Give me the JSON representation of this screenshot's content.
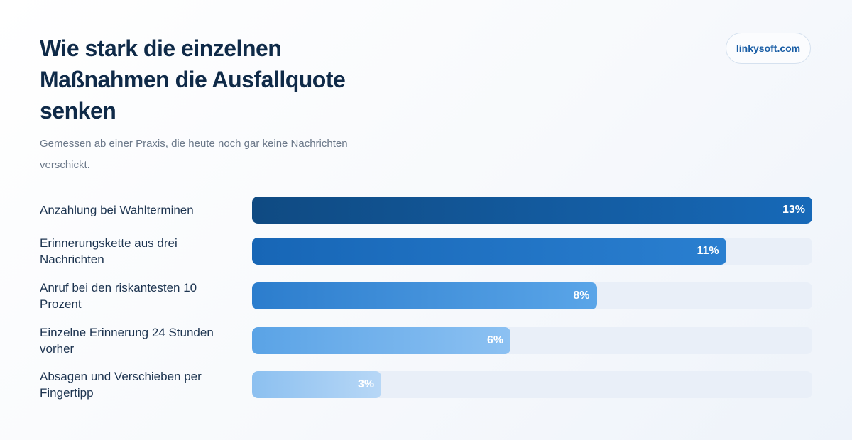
{
  "brand": "linkysoft.com",
  "chart_data": {
    "type": "bar",
    "orientation": "horizontal",
    "title": "Wie stark die einzelnen Maßnahmen die Ausfallquote senken",
    "subtitle": "Gemessen ab einer Praxis, die heute noch gar keine Nachrichten verschickt.",
    "xlim": [
      0,
      13
    ],
    "value_suffix": "%",
    "categories": [
      "Anzahlung bei Wahlterminen",
      "Erinnerungskette aus drei Nachrichten",
      "Anruf bei den riskantesten 10 Prozent",
      "Einzelne Erinnerung 24 Stunden vorher",
      "Absagen und Verschieben per Fingertipp"
    ],
    "values": [
      13,
      11,
      8,
      6,
      3
    ],
    "value_labels": [
      "13%",
      "11%",
      "8%",
      "6%",
      "3%"
    ],
    "colors": [
      [
        "#0f4a82",
        "#1769b8"
      ],
      [
        "#1766b6",
        "#2a7fd0"
      ],
      [
        "#2c7dcd",
        "#5aa5e8"
      ],
      [
        "#5aa3e6",
        "#8cc1f2"
      ],
      [
        "#8cc0f0",
        "#b7d7f6"
      ]
    ]
  }
}
